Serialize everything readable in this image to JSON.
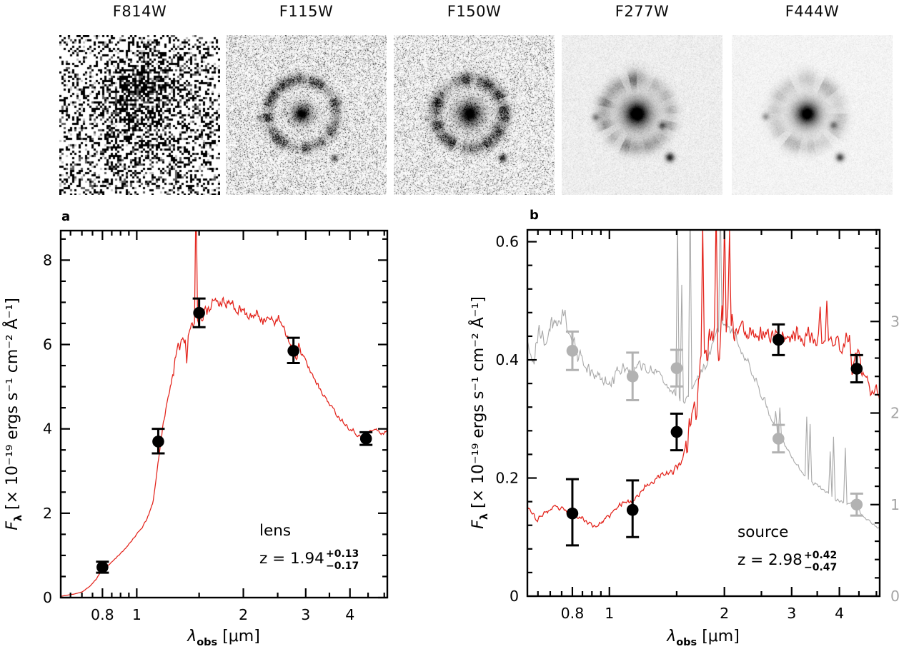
{
  "cutouts": {
    "panels": [
      {
        "label": "F814W",
        "instrument_style": "noisy-binary"
      },
      {
        "label": "F115W",
        "instrument_style": "speckle-ring"
      },
      {
        "label": "F150W",
        "instrument_style": "speckle-ring-strong"
      },
      {
        "label": "F277W",
        "instrument_style": "smooth-ring"
      },
      {
        "label": "F444W",
        "instrument_style": "smooth-ring-faint"
      }
    ]
  },
  "colors": {
    "sed_red": "#e3221a",
    "gray_curve": "#a9a9a9",
    "gray_points": "#b2b2b2",
    "right_axis_gray": "#a5a5a5",
    "black": "#000000"
  },
  "chart_data": [
    {
      "id": "a",
      "type": "line",
      "panel_label": "a",
      "annotation_object": "lens",
      "annotation_z": "z = 1.94",
      "annotation_z_err_plus": "+0.13",
      "annotation_z_err_minus": "−0.17",
      "xlabel": {
        "sym": "λ",
        "sub": "obs",
        "unit": " [μm]"
      },
      "ylabel": {
        "sym": "F",
        "sub": "λ",
        "unit": " [× 10⁻¹⁹ ergs s⁻¹ cm⁻² Å⁻¹]"
      },
      "x_scale": "log",
      "xlim": [
        0.61,
        5.1
      ],
      "ylim": [
        0,
        8.7
      ],
      "xticks": [
        0.8,
        1,
        2,
        3,
        4
      ],
      "xticks_minor": [
        0.65,
        0.7,
        0.75,
        0.85,
        0.9,
        0.95,
        1.5,
        2.5,
        3.5,
        4.5,
        5
      ],
      "yticks": [
        0,
        2,
        4,
        6,
        8
      ],
      "ytick_minor_step": 0.5,
      "photometry": {
        "name": "lens-photometry",
        "color": "#000000",
        "x": [
          0.8,
          1.15,
          1.5,
          2.77,
          4.44
        ],
        "y": [
          0.72,
          3.7,
          6.75,
          5.85,
          3.77
        ],
        "yerr_plus": [
          0.13,
          0.3,
          0.34,
          0.31,
          0.15
        ],
        "yerr_minus": [
          0.13,
          0.28,
          0.34,
          0.29,
          0.15
        ]
      },
      "model": {
        "name": "lens-best-fit-sed",
        "color": "#e3221a",
        "width": 1.25,
        "jitter": 0.06,
        "jitter_scale": "value",
        "seed": 11,
        "samples": 420,
        "rough": [
          [
            1.25,
            2.3,
            2.1
          ],
          [
            2.3,
            3.3,
            1.4
          ]
        ],
        "spikes": [
          [
            1.47,
            9.6
          ]
        ],
        "anchors": [
          [
            0.61,
            0.03
          ],
          [
            0.66,
            0.08
          ],
          [
            0.7,
            0.13
          ],
          [
            0.74,
            0.28
          ],
          [
            0.77,
            0.45
          ],
          [
            0.8,
            0.68
          ],
          [
            0.84,
            0.8
          ],
          [
            0.88,
            0.97
          ],
          [
            0.92,
            1.12
          ],
          [
            0.96,
            1.32
          ],
          [
            1.0,
            1.5
          ],
          [
            1.04,
            1.68
          ],
          [
            1.08,
            1.95
          ],
          [
            1.11,
            2.25
          ],
          [
            1.13,
            2.7
          ],
          [
            1.15,
            3.25
          ],
          [
            1.17,
            3.7
          ],
          [
            1.19,
            4.15
          ],
          [
            1.22,
            4.65
          ],
          [
            1.25,
            5.1
          ],
          [
            1.28,
            5.55
          ],
          [
            1.31,
            5.9
          ],
          [
            1.34,
            6.15
          ],
          [
            1.37,
            6.2
          ],
          [
            1.385,
            5.55
          ],
          [
            1.4,
            6.3
          ],
          [
            1.43,
            6.45
          ],
          [
            1.46,
            6.55
          ],
          [
            1.5,
            6.7
          ],
          [
            1.53,
            6.55
          ],
          [
            1.57,
            6.85
          ],
          [
            1.62,
            6.95
          ],
          [
            1.67,
            7.0
          ],
          [
            1.72,
            7.05
          ],
          [
            1.77,
            6.9
          ],
          [
            1.82,
            7.0
          ],
          [
            1.87,
            6.85
          ],
          [
            1.92,
            6.9
          ],
          [
            1.97,
            6.8
          ],
          [
            2.02,
            6.85
          ],
          [
            2.07,
            6.7
          ],
          [
            2.12,
            6.6
          ],
          [
            2.17,
            6.75
          ],
          [
            2.25,
            6.65
          ],
          [
            2.35,
            6.6
          ],
          [
            2.45,
            6.55
          ],
          [
            2.52,
            6.6
          ],
          [
            2.58,
            6.4
          ],
          [
            2.64,
            6.25
          ],
          [
            2.7,
            6.05
          ],
          [
            2.77,
            5.9
          ],
          [
            2.83,
            5.7
          ],
          [
            2.87,
            6.05
          ],
          [
            2.92,
            5.75
          ],
          [
            3.0,
            5.6
          ],
          [
            3.1,
            5.35
          ],
          [
            3.2,
            5.15
          ],
          [
            3.3,
            4.95
          ],
          [
            3.4,
            4.75
          ],
          [
            3.5,
            4.6
          ],
          [
            3.6,
            4.45
          ],
          [
            3.7,
            4.3
          ],
          [
            3.8,
            4.2
          ],
          [
            3.9,
            4.1
          ],
          [
            4.0,
            4.0
          ],
          [
            4.1,
            3.95
          ],
          [
            4.2,
            3.85
          ],
          [
            4.32,
            3.8
          ],
          [
            4.44,
            3.78
          ],
          [
            4.56,
            3.95
          ],
          [
            4.7,
            4.0
          ],
          [
            4.85,
            3.92
          ],
          [
            5.0,
            3.88
          ],
          [
            5.1,
            3.98
          ]
        ]
      }
    },
    {
      "id": "b",
      "type": "line",
      "panel_label": "b",
      "annotation_object": "source",
      "annotation_z": "z = 2.98",
      "annotation_z_err_plus": "+0.42",
      "annotation_z_err_minus": "−0.47",
      "xlabel": {
        "sym": "λ",
        "sub": "obs",
        "unit": " [μm]"
      },
      "ylabel": {
        "sym": "F",
        "sub": "λ",
        "unit": " [× 10⁻¹⁹ ergs s⁻¹ cm⁻² Å⁻¹]"
      },
      "x_scale": "log",
      "xlim": [
        0.61,
        5.1
      ],
      "ylim": [
        0,
        0.62
      ],
      "xticks": [
        0.8,
        1,
        2,
        3,
        4
      ],
      "xticks_minor": [
        0.65,
        0.7,
        0.75,
        0.85,
        0.9,
        0.95,
        1.5,
        2.5,
        3.5,
        4.5,
        5
      ],
      "yticks": [
        0,
        0.2,
        0.4,
        0.6
      ],
      "ytick_minor_step": 0.04,
      "right_axis": {
        "lim": [
          0,
          4
        ],
        "ticks": [
          0,
          1,
          2,
          3
        ],
        "minor_step": 0.2,
        "color": "#a5a5a5"
      },
      "photometry": {
        "name": "source-photometry",
        "color": "#000000",
        "x": [
          0.8,
          1.15,
          1.5,
          2.77,
          4.44
        ],
        "y": [
          0.14,
          0.146,
          0.278,
          0.434,
          0.385
        ],
        "yerr_plus": [
          0.058,
          0.05,
          0.031,
          0.026,
          0.023
        ],
        "yerr_minus": [
          0.054,
          0.046,
          0.031,
          0.026,
          0.023
        ]
      },
      "photometry_gray": {
        "name": "lens-scaled-photometry",
        "color": "#b2b2b2",
        "axis": "right",
        "x": [
          0.8,
          1.15,
          1.5,
          2.77,
          4.44
        ],
        "y": [
          2.68,
          2.4,
          2.49,
          1.72,
          1.0
        ],
        "yerr_plus": [
          0.21,
          0.26,
          0.2,
          0.15,
          0.12
        ],
        "yerr_minus": [
          0.21,
          0.26,
          0.2,
          0.15,
          0.12
        ]
      },
      "model": {
        "name": "source-best-fit-sed",
        "color": "#e3221a",
        "width": 1.25,
        "jitter": 0.01,
        "jitter_scale": "value",
        "seed": 23,
        "samples": 420,
        "rough": [
          [
            1.58,
            2.15,
            3.2
          ],
          [
            2.15,
            4.25,
            1.3
          ]
        ],
        "spikes": [
          [
            1.755,
            0.63
          ],
          [
            1.9,
            0.66
          ],
          [
            2.005,
            0.64
          ],
          [
            2.06,
            0.62
          ],
          [
            3.56,
            0.49
          ],
          [
            3.7,
            0.5
          ]
        ],
        "anchors": [
          [
            0.61,
            0.155
          ],
          [
            0.645,
            0.128
          ],
          [
            0.68,
            0.142
          ],
          [
            0.72,
            0.15
          ],
          [
            0.76,
            0.146
          ],
          [
            0.8,
            0.14
          ],
          [
            0.84,
            0.134
          ],
          [
            0.88,
            0.124
          ],
          [
            0.92,
            0.118
          ],
          [
            0.96,
            0.126
          ],
          [
            1.0,
            0.136
          ],
          [
            1.05,
            0.15
          ],
          [
            1.1,
            0.163
          ],
          [
            1.14,
            0.158
          ],
          [
            1.18,
            0.17
          ],
          [
            1.22,
            0.18
          ],
          [
            1.27,
            0.19
          ],
          [
            1.32,
            0.198
          ],
          [
            1.38,
            0.205
          ],
          [
            1.44,
            0.208
          ],
          [
            1.5,
            0.218
          ],
          [
            1.55,
            0.232
          ],
          [
            1.6,
            0.262
          ],
          [
            1.63,
            0.3
          ],
          [
            1.66,
            0.33
          ],
          [
            1.69,
            0.3
          ],
          [
            1.72,
            0.38
          ],
          [
            1.75,
            0.42
          ],
          [
            1.78,
            0.4
          ],
          [
            1.82,
            0.44
          ],
          [
            1.86,
            0.42
          ],
          [
            1.9,
            0.46
          ],
          [
            1.94,
            0.44
          ],
          [
            1.98,
            0.46
          ],
          [
            2.03,
            0.45
          ],
          [
            2.08,
            0.46
          ],
          [
            2.14,
            0.45
          ],
          [
            2.2,
            0.455
          ],
          [
            2.3,
            0.445
          ],
          [
            2.4,
            0.452
          ],
          [
            2.5,
            0.44
          ],
          [
            2.6,
            0.448
          ],
          [
            2.7,
            0.438
          ],
          [
            2.77,
            0.44
          ],
          [
            2.85,
            0.445
          ],
          [
            2.95,
            0.438
          ],
          [
            3.05,
            0.445
          ],
          [
            3.15,
            0.44
          ],
          [
            3.25,
            0.432
          ],
          [
            3.35,
            0.44
          ],
          [
            3.45,
            0.43
          ],
          [
            3.55,
            0.44
          ],
          [
            3.65,
            0.43
          ],
          [
            3.75,
            0.435
          ],
          [
            3.85,
            0.425
          ],
          [
            3.95,
            0.43
          ],
          [
            4.05,
            0.425
          ],
          [
            4.15,
            0.43
          ],
          [
            4.25,
            0.44
          ],
          [
            4.32,
            0.372
          ],
          [
            4.4,
            0.418
          ],
          [
            4.5,
            0.408
          ],
          [
            4.6,
            0.372
          ],
          [
            4.72,
            0.362
          ],
          [
            4.85,
            0.345
          ],
          [
            5.0,
            0.348
          ],
          [
            5.1,
            0.33
          ]
        ]
      },
      "model_gray": {
        "name": "lens-scaled-sed",
        "color": "#a9a9a9",
        "width": 1.1,
        "axis": "right",
        "jitter": 0.05,
        "jitter_scale": "value",
        "seed": 41,
        "samples": 420,
        "rough": [
          [
            0.61,
            1.05,
            1.7
          ]
        ],
        "spikes": [
          [
            1.505,
            4.1
          ],
          [
            1.55,
            3.4
          ],
          [
            1.625,
            4.35
          ],
          [
            1.95,
            4.35
          ],
          [
            2.73,
            2.02
          ],
          [
            2.8,
            2.06
          ],
          [
            3.28,
            1.96
          ],
          [
            3.35,
            1.88
          ],
          [
            3.79,
            1.58
          ],
          [
            3.86,
            1.74
          ],
          [
            4.14,
            1.62
          ]
        ],
        "anchors": [
          [
            0.61,
            2.75
          ],
          [
            0.63,
            2.5
          ],
          [
            0.655,
            2.92
          ],
          [
            0.68,
            2.76
          ],
          [
            0.705,
            3.05
          ],
          [
            0.73,
            2.95
          ],
          [
            0.755,
            3.1
          ],
          [
            0.78,
            2.98
          ],
          [
            0.8,
            2.8
          ],
          [
            0.83,
            2.62
          ],
          [
            0.86,
            2.52
          ],
          [
            0.9,
            2.44
          ],
          [
            0.95,
            2.37
          ],
          [
            1.0,
            2.32
          ],
          [
            1.05,
            2.44
          ],
          [
            1.1,
            2.5
          ],
          [
            1.15,
            2.42
          ],
          [
            1.2,
            2.54
          ],
          [
            1.26,
            2.44
          ],
          [
            1.32,
            2.5
          ],
          [
            1.38,
            2.36
          ],
          [
            1.44,
            2.28
          ],
          [
            1.5,
            2.18
          ],
          [
            1.56,
            2.1
          ],
          [
            1.62,
            2.2
          ],
          [
            1.7,
            2.36
          ],
          [
            1.8,
            2.56
          ],
          [
            1.9,
            2.86
          ],
          [
            1.97,
            3.02
          ],
          [
            2.04,
            2.94
          ],
          [
            2.12,
            2.86
          ],
          [
            2.22,
            2.66
          ],
          [
            2.32,
            2.52
          ],
          [
            2.44,
            2.32
          ],
          [
            2.56,
            2.12
          ],
          [
            2.68,
            1.9
          ],
          [
            2.77,
            1.74
          ],
          [
            2.86,
            1.68
          ],
          [
            2.96,
            1.56
          ],
          [
            3.08,
            1.44
          ],
          [
            3.22,
            1.34
          ],
          [
            3.36,
            1.26
          ],
          [
            3.52,
            1.2
          ],
          [
            3.68,
            1.13
          ],
          [
            3.84,
            1.08
          ],
          [
            4.0,
            1.04
          ],
          [
            4.13,
            1.02
          ],
          [
            4.25,
            0.99
          ],
          [
            4.36,
            1.03
          ],
          [
            4.44,
            0.99
          ],
          [
            4.56,
            0.9
          ],
          [
            4.7,
            0.84
          ],
          [
            4.85,
            0.8
          ],
          [
            5.0,
            0.76
          ],
          [
            5.1,
            0.73
          ]
        ]
      }
    }
  ]
}
